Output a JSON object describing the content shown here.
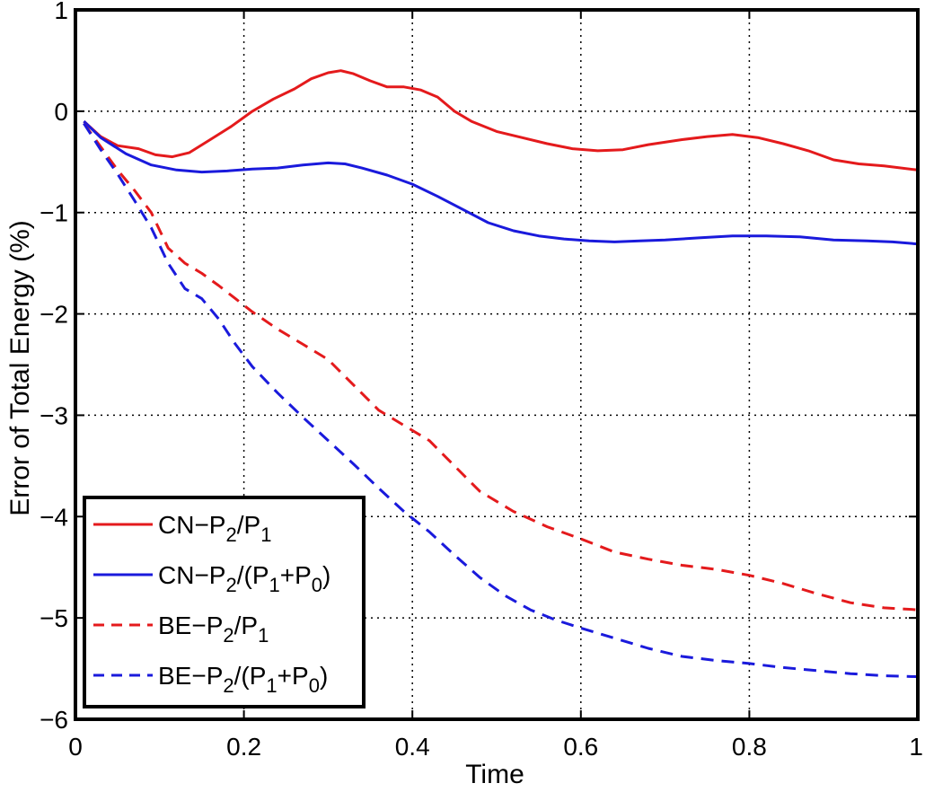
{
  "chart_data": {
    "type": "line",
    "title": "",
    "xlabel": "Time",
    "ylabel": "Error of Total Energy (%)",
    "xlim": [
      0,
      1
    ],
    "ylim": [
      -6,
      1
    ],
    "grid": true,
    "legend_position": "bottom-left",
    "x_ticks": [
      {
        "value": 0,
        "label": "0"
      },
      {
        "value": 0.2,
        "label": "0.2"
      },
      {
        "value": 0.4,
        "label": "0.4"
      },
      {
        "value": 0.6,
        "label": "0.6"
      },
      {
        "value": 0.8,
        "label": "0.8"
      },
      {
        "value": 1,
        "label": "1"
      }
    ],
    "y_ticks": [
      {
        "value": 1,
        "label": "1"
      },
      {
        "value": 0,
        "label": "0"
      },
      {
        "value": -1,
        "label": "−1"
      },
      {
        "value": -2,
        "label": "−2"
      },
      {
        "value": -3,
        "label": "−3"
      },
      {
        "value": -4,
        "label": "−4"
      },
      {
        "value": -5,
        "label": "−5"
      },
      {
        "value": -6,
        "label": "−6"
      }
    ],
    "series": [
      {
        "name": "CN−P2/P1",
        "legend_parts": {
          "prefix": "CN−P",
          "s1": "2",
          "mid": "/P",
          "s2": "1",
          "mid2": "",
          "s3": "",
          "suffix": ""
        },
        "color": "#e41a1c",
        "dash": "solid",
        "x": [
          0.01,
          0.03,
          0.05,
          0.075,
          0.095,
          0.115,
          0.135,
          0.16,
          0.185,
          0.21,
          0.235,
          0.26,
          0.28,
          0.3,
          0.315,
          0.33,
          0.35,
          0.37,
          0.39,
          0.41,
          0.43,
          0.45,
          0.47,
          0.5,
          0.53,
          0.56,
          0.59,
          0.62,
          0.65,
          0.68,
          0.72,
          0.75,
          0.78,
          0.81,
          0.84,
          0.87,
          0.9,
          0.93,
          0.96,
          1.0
        ],
        "y": [
          -0.1,
          -0.25,
          -0.34,
          -0.37,
          -0.43,
          -0.45,
          -0.41,
          -0.28,
          -0.15,
          0.0,
          0.12,
          0.22,
          0.32,
          0.38,
          0.4,
          0.37,
          0.3,
          0.24,
          0.24,
          0.21,
          0.14,
          0.0,
          -0.1,
          -0.2,
          -0.26,
          -0.32,
          -0.37,
          -0.39,
          -0.38,
          -0.33,
          -0.28,
          -0.25,
          -0.23,
          -0.26,
          -0.32,
          -0.39,
          -0.48,
          -0.52,
          -0.54,
          -0.58
        ]
      },
      {
        "name": "CN−P2/(P1+P0)",
        "legend_parts": {
          "prefix": "CN−P",
          "s1": "2",
          "mid": "/(P",
          "s2": "1",
          "mid2": "+P",
          "s3": "0",
          "suffix": ")"
        },
        "color": "#1a1adc",
        "dash": "solid",
        "x": [
          0.01,
          0.03,
          0.06,
          0.09,
          0.12,
          0.15,
          0.18,
          0.21,
          0.24,
          0.27,
          0.3,
          0.32,
          0.34,
          0.37,
          0.4,
          0.43,
          0.46,
          0.49,
          0.52,
          0.55,
          0.58,
          0.61,
          0.64,
          0.67,
          0.7,
          0.74,
          0.78,
          0.82,
          0.86,
          0.9,
          0.94,
          0.97,
          1.0
        ],
        "y": [
          -0.1,
          -0.26,
          -0.42,
          -0.53,
          -0.58,
          -0.6,
          -0.59,
          -0.57,
          -0.56,
          -0.53,
          -0.51,
          -0.52,
          -0.56,
          -0.63,
          -0.72,
          -0.84,
          -0.97,
          -1.1,
          -1.18,
          -1.23,
          -1.26,
          -1.28,
          -1.29,
          -1.28,
          -1.27,
          -1.25,
          -1.23,
          -1.23,
          -1.24,
          -1.27,
          -1.28,
          -1.29,
          -1.31
        ]
      },
      {
        "name": "BE−P2/P1",
        "legend_parts": {
          "prefix": "BE−P",
          "s1": "2",
          "mid": "/P",
          "s2": "1",
          "mid2": "",
          "s3": "",
          "suffix": ""
        },
        "color": "#e41a1c",
        "dash": "dashed",
        "x": [
          0.01,
          0.03,
          0.05,
          0.07,
          0.09,
          0.11,
          0.13,
          0.15,
          0.17,
          0.19,
          0.21,
          0.24,
          0.27,
          0.3,
          0.33,
          0.36,
          0.39,
          0.42,
          0.45,
          0.48,
          0.52,
          0.56,
          0.6,
          0.64,
          0.68,
          0.72,
          0.76,
          0.8,
          0.84,
          0.88,
          0.92,
          0.96,
          1.0
        ],
        "y": [
          -0.12,
          -0.35,
          -0.58,
          -0.78,
          -1.0,
          -1.35,
          -1.5,
          -1.6,
          -1.72,
          -1.85,
          -1.98,
          -2.15,
          -2.3,
          -2.45,
          -2.7,
          -2.95,
          -3.1,
          -3.25,
          -3.5,
          -3.75,
          -3.95,
          -4.1,
          -4.22,
          -4.35,
          -4.42,
          -4.48,
          -4.52,
          -4.58,
          -4.66,
          -4.76,
          -4.85,
          -4.9,
          -4.92
        ]
      },
      {
        "name": "BE−P2/(P1+P0)",
        "legend_parts": {
          "prefix": "BE−P",
          "s1": "2",
          "mid": "/(P",
          "s2": "1",
          "mid2": "+P",
          "s3": "0",
          "suffix": ")"
        },
        "color": "#1a1adc",
        "dash": "dashed",
        "x": [
          0.01,
          0.03,
          0.05,
          0.07,
          0.09,
          0.11,
          0.13,
          0.15,
          0.17,
          0.19,
          0.21,
          0.24,
          0.27,
          0.3,
          0.33,
          0.36,
          0.39,
          0.42,
          0.45,
          0.48,
          0.51,
          0.54,
          0.57,
          0.6,
          0.64,
          0.68,
          0.72,
          0.76,
          0.8,
          0.84,
          0.88,
          0.92,
          0.96,
          1.0
        ],
        "y": [
          -0.12,
          -0.38,
          -0.62,
          -0.88,
          -1.15,
          -1.5,
          -1.75,
          -1.85,
          -2.05,
          -2.3,
          -2.52,
          -2.78,
          -3.02,
          -3.25,
          -3.48,
          -3.72,
          -3.95,
          -4.15,
          -4.38,
          -4.6,
          -4.78,
          -4.92,
          -5.02,
          -5.1,
          -5.2,
          -5.3,
          -5.38,
          -5.42,
          -5.45,
          -5.49,
          -5.52,
          -5.55,
          -5.57,
          -5.58
        ]
      }
    ]
  }
}
